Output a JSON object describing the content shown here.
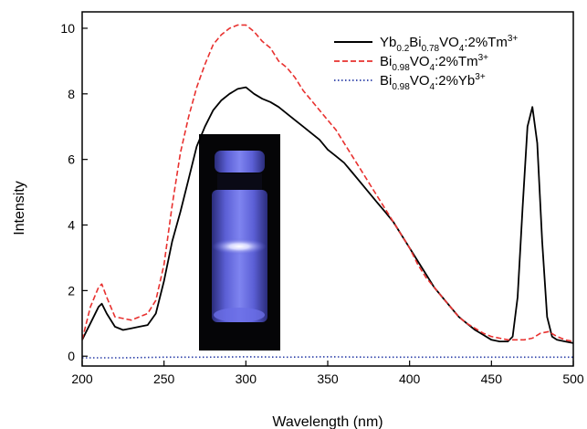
{
  "chart_data": {
    "type": "line",
    "xlabel": "Wavelength (nm)",
    "ylabel": "Intensity",
    "xlim": [
      200,
      500
    ],
    "ylim": [
      -0.3,
      10.5
    ],
    "x_ticks": [
      200,
      250,
      300,
      350,
      400,
      450,
      500
    ],
    "y_ticks": [
      0,
      2,
      4,
      6,
      8,
      10
    ],
    "x_tick_labels": [
      "200",
      "250",
      "300",
      "350",
      "400",
      "450",
      "500"
    ],
    "y_tick_labels": [
      "0",
      "2",
      "4",
      "6",
      "8",
      "10"
    ],
    "grid": false,
    "legend_position": "top-right",
    "inset": "photograph-of-glowing-sample-tube",
    "series": [
      {
        "name": "Yb0.2Bi0.78VO4:2%Tm3+",
        "legend": {
          "base1": "Yb",
          "sub1": "0.2",
          "base2": "Bi",
          "sub2": "0.78",
          "base3": "VO",
          "sub3": "4",
          "tail": ":2%Tm",
          "sup": "3+"
        },
        "color": "#000000",
        "style": "solid",
        "x": [
          200,
          205,
          210,
          212,
          215,
          220,
          225,
          230,
          235,
          240,
          245,
          250,
          255,
          260,
          265,
          270,
          275,
          280,
          285,
          290,
          295,
          300,
          305,
          310,
          315,
          320,
          325,
          330,
          335,
          340,
          345,
          350,
          355,
          360,
          365,
          370,
          375,
          380,
          385,
          390,
          395,
          400,
          405,
          410,
          415,
          420,
          425,
          430,
          435,
          440,
          445,
          450,
          455,
          460,
          463,
          466,
          469,
          472,
          475,
          478,
          481,
          484,
          487,
          490,
          495,
          500
        ],
        "values": [
          0.5,
          1.0,
          1.5,
          1.6,
          1.3,
          0.9,
          0.8,
          0.85,
          0.9,
          0.95,
          1.3,
          2.3,
          3.5,
          4.4,
          5.4,
          6.4,
          7.0,
          7.5,
          7.8,
          8.0,
          8.15,
          8.2,
          8.0,
          7.85,
          7.75,
          7.6,
          7.4,
          7.2,
          7.0,
          6.8,
          6.6,
          6.3,
          6.1,
          5.9,
          5.6,
          5.3,
          5.0,
          4.7,
          4.4,
          4.1,
          3.7,
          3.3,
          2.9,
          2.5,
          2.1,
          1.8,
          1.5,
          1.2,
          1.0,
          0.8,
          0.65,
          0.5,
          0.45,
          0.45,
          0.6,
          1.8,
          4.5,
          7.0,
          7.6,
          6.5,
          3.5,
          1.2,
          0.6,
          0.5,
          0.45,
          0.4
        ]
      },
      {
        "name": "Bi0.98VO4:2%Tm3+",
        "legend": {
          "base1": "Bi",
          "sub1": "0.98",
          "base2": "VO",
          "sub2": "4",
          "tail": ":2%Tm",
          "sup": "3+"
        },
        "color": "#e8312f",
        "style": "dashed",
        "x": [
          200,
          205,
          210,
          212,
          215,
          220,
          225,
          230,
          235,
          240,
          245,
          250,
          255,
          260,
          265,
          270,
          275,
          280,
          285,
          290,
          295,
          300,
          305,
          310,
          315,
          320,
          325,
          330,
          335,
          340,
          345,
          350,
          355,
          360,
          365,
          370,
          375,
          380,
          385,
          390,
          395,
          400,
          405,
          410,
          415,
          420,
          425,
          430,
          435,
          440,
          445,
          450,
          455,
          460,
          465,
          470,
          475,
          480,
          485,
          490,
          495,
          500
        ],
        "values": [
          0.5,
          1.5,
          2.1,
          2.2,
          1.8,
          1.2,
          1.15,
          1.1,
          1.2,
          1.3,
          1.7,
          2.8,
          4.6,
          6.2,
          7.3,
          8.2,
          8.9,
          9.5,
          9.8,
          10.0,
          10.1,
          10.1,
          9.9,
          9.6,
          9.4,
          9.0,
          8.8,
          8.5,
          8.1,
          7.8,
          7.5,
          7.2,
          6.9,
          6.5,
          6.1,
          5.7,
          5.3,
          4.9,
          4.5,
          4.1,
          3.7,
          3.3,
          2.8,
          2.4,
          2.1,
          1.8,
          1.5,
          1.2,
          1.0,
          0.85,
          0.7,
          0.6,
          0.55,
          0.5,
          0.5,
          0.5,
          0.55,
          0.7,
          0.75,
          0.6,
          0.5,
          0.45
        ]
      },
      {
        "name": "Bi0.98VO4:2%Yb3+",
        "legend": {
          "base1": "Bi",
          "sub1": "0.98",
          "base2": "VO",
          "sub2": "4",
          "tail": ":2%Yb",
          "sup": "3+"
        },
        "color": "#2b3fa8",
        "style": "dotted",
        "x": [
          200,
          225,
          250,
          275,
          300,
          325,
          350,
          375,
          400,
          425,
          450,
          475,
          500
        ],
        "values": [
          -0.05,
          -0.05,
          -0.03,
          -0.03,
          -0.02,
          -0.03,
          -0.02,
          -0.03,
          -0.03,
          -0.03,
          -0.03,
          -0.03,
          -0.03
        ]
      }
    ]
  }
}
